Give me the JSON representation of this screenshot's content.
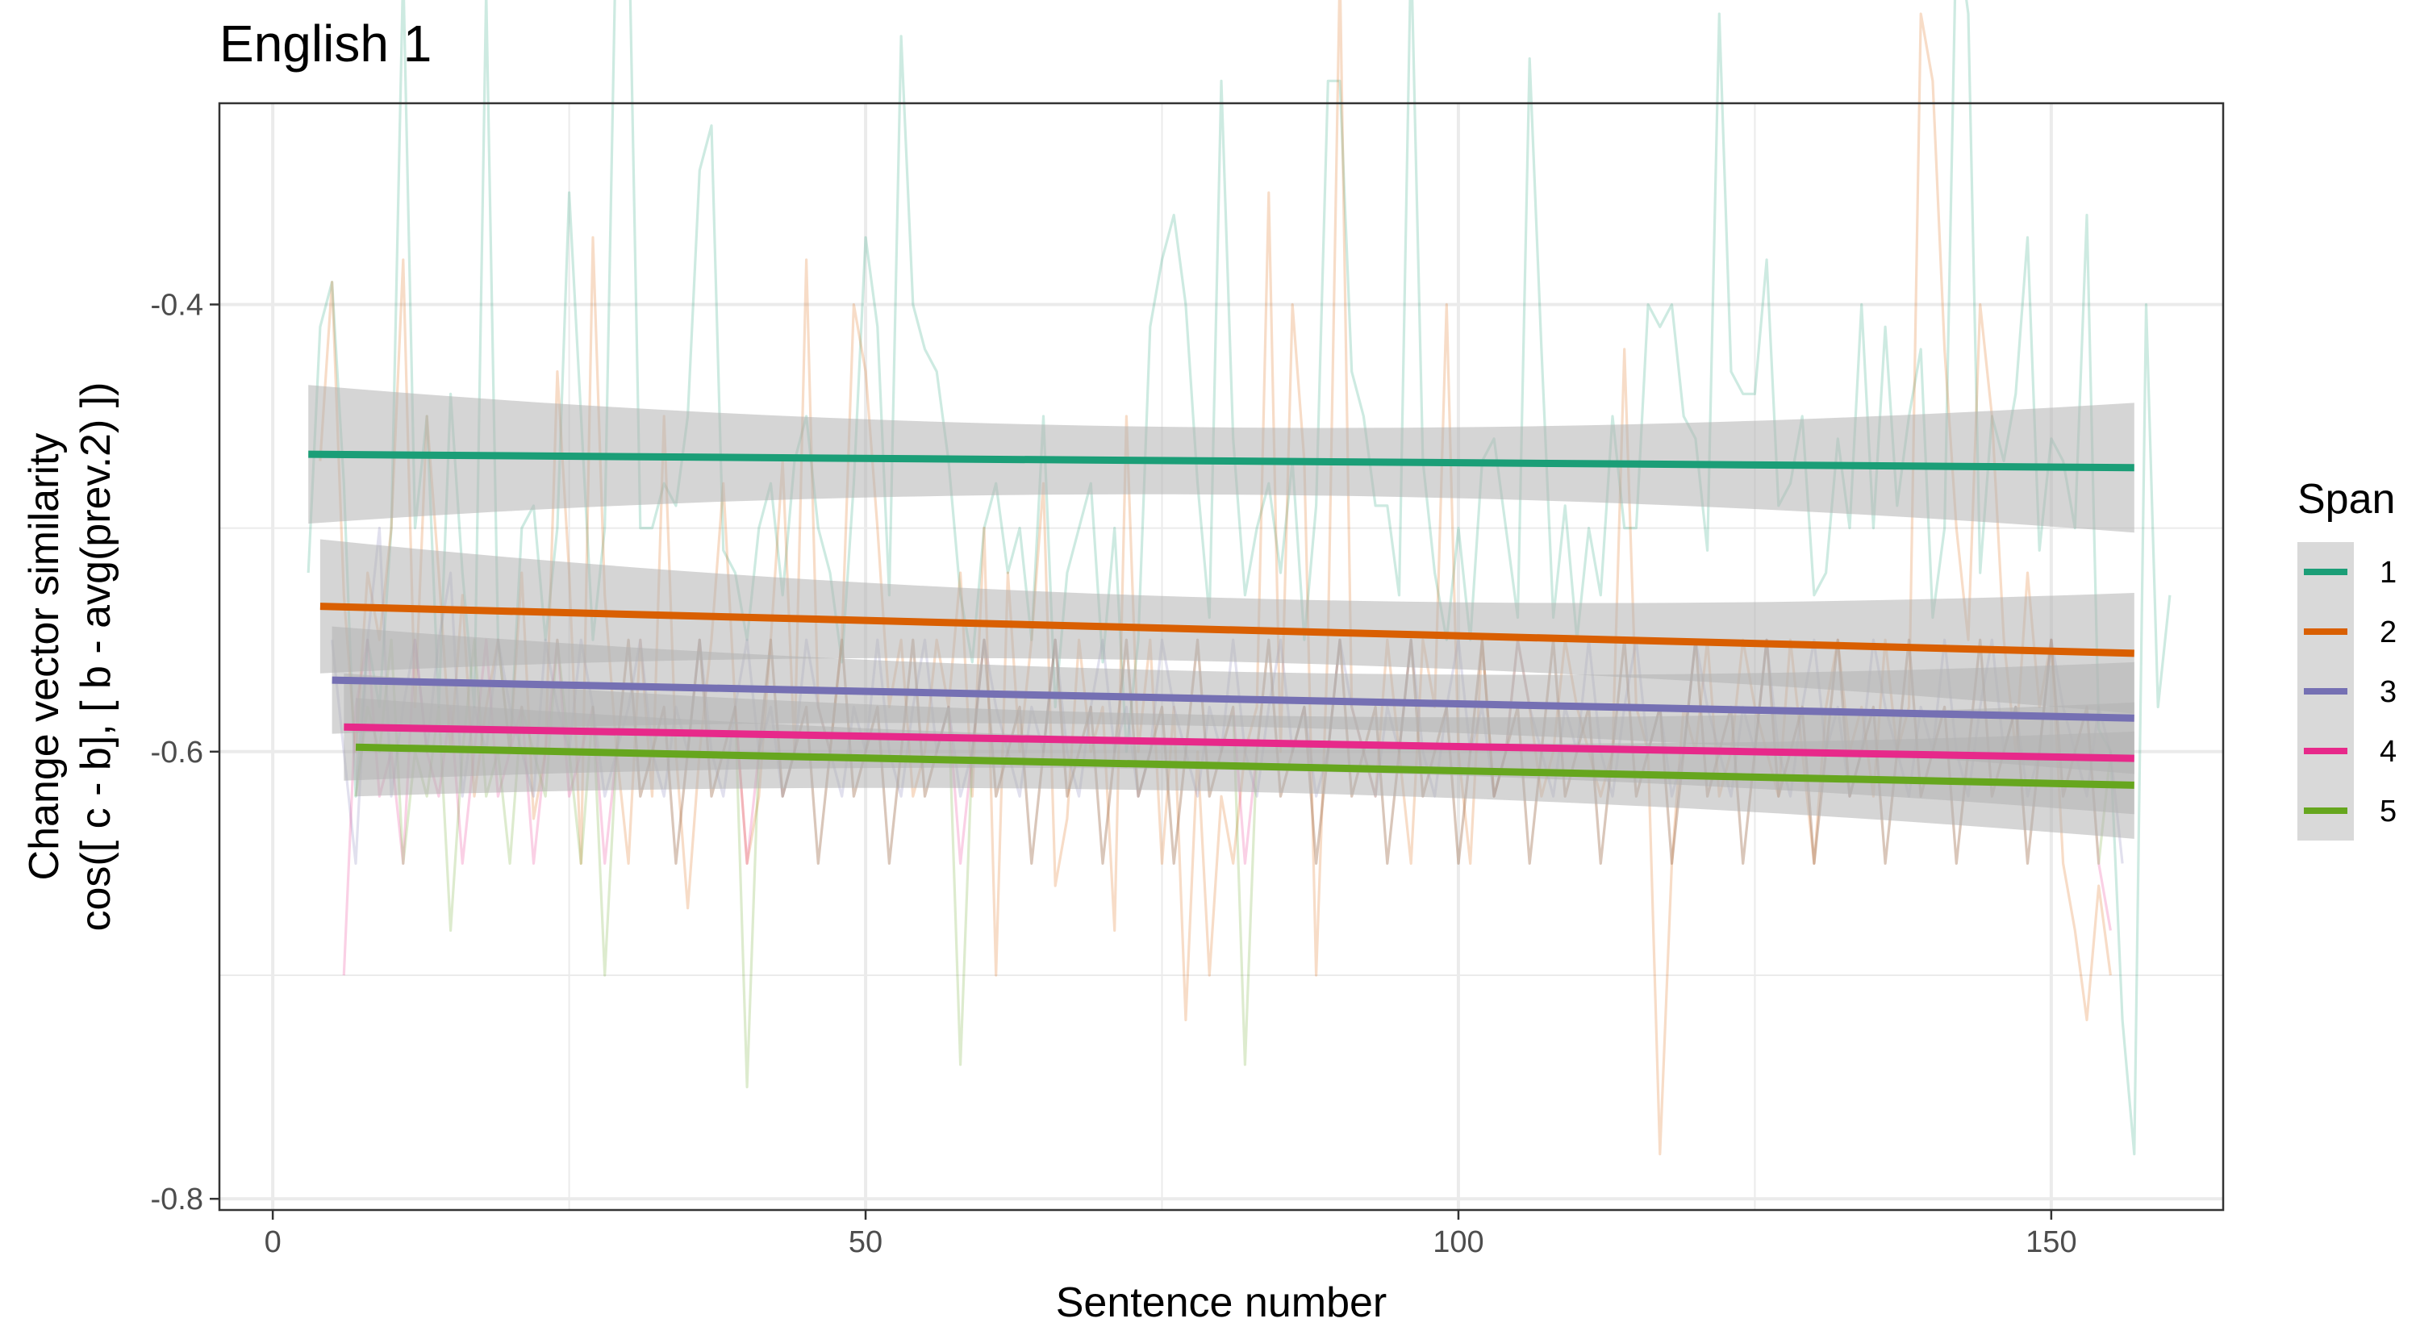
{
  "chart_data": {
    "type": "line",
    "title": "English 1",
    "xlabel": "Sentence number",
    "ylabel_lines": [
      "Change vector similarity",
      "cos([ c - b], [ b - avg(prev.2) ])"
    ],
    "xlim": [
      -4.5,
      164.5
    ],
    "ylim": [
      -0.805,
      -0.31
    ],
    "x_ticks": [
      0,
      50,
      100,
      150
    ],
    "x_tick_labels": [
      "0",
      "50",
      "100",
      "150"
    ],
    "y_ticks": [
      -0.8,
      -0.6,
      -0.4
    ],
    "y_tick_labels": [
      "-0.8",
      "-0.6",
      "-0.4"
    ],
    "grid": true,
    "legend": {
      "title": "Span",
      "position": "right",
      "entries": [
        "1",
        "2",
        "3",
        "4",
        "5"
      ]
    },
    "colors": {
      "1": "#1b9e77",
      "2": "#d95f02",
      "3": "#7570b3",
      "4": "#e7298a",
      "5": "#66a61e",
      "ribbon": "#b3b3b3",
      "panel_border": "#333333",
      "grid": "#ebebeb"
    },
    "trend_lines": [
      {
        "name": "1",
        "x": [
          3,
          157
        ],
        "y": [
          -0.467,
          -0.473
        ],
        "se": [
          0.031,
          0.029
        ]
      },
      {
        "name": "2",
        "x": [
          4,
          157
        ],
        "y": [
          -0.535,
          -0.556
        ],
        "se": [
          0.03,
          0.027
        ]
      },
      {
        "name": "3",
        "x": [
          5,
          157
        ],
        "y": [
          -0.568,
          -0.585
        ],
        "se": [
          0.024,
          0.025
        ]
      },
      {
        "name": "4",
        "x": [
          6,
          157
        ],
        "y": [
          -0.589,
          -0.603
        ],
        "se": [
          0.024,
          0.025
        ]
      },
      {
        "name": "5",
        "x": [
          7,
          157
        ],
        "y": [
          -0.598,
          -0.615
        ],
        "se": [
          0.022,
          0.024
        ]
      }
    ],
    "series": [
      {
        "name": "1",
        "x_start": 3,
        "values": [
          -0.52,
          -0.41,
          -0.39,
          -0.48,
          -0.62,
          -0.55,
          -0.58,
          -0.5,
          -0.25,
          -0.5,
          -0.45,
          -0.58,
          -0.44,
          -0.52,
          -0.58,
          -0.26,
          -0.55,
          -0.6,
          -0.5,
          -0.49,
          -0.55,
          -0.5,
          -0.35,
          -0.45,
          -0.55,
          -0.5,
          -0.22,
          -0.22,
          -0.5,
          -0.5,
          -0.48,
          -0.49,
          -0.45,
          -0.34,
          -0.32,
          -0.51,
          -0.52,
          -0.55,
          -0.5,
          -0.48,
          -0.53,
          -0.47,
          -0.45,
          -0.5,
          -0.52,
          -0.56,
          -0.48,
          -0.37,
          -0.41,
          -0.53,
          -0.28,
          -0.4,
          -0.42,
          -0.43,
          -0.47,
          -0.53,
          -0.56,
          -0.5,
          -0.48,
          -0.52,
          -0.5,
          -0.55,
          -0.45,
          -0.58,
          -0.52,
          -0.5,
          -0.48,
          -0.56,
          -0.5,
          -0.6,
          -0.55,
          -0.41,
          -0.38,
          -0.36,
          -0.4,
          -0.48,
          -0.54,
          -0.3,
          -0.46,
          -0.53,
          -0.5,
          -0.48,
          -0.52,
          -0.47,
          -0.55,
          -0.49,
          -0.3,
          -0.3,
          -0.43,
          -0.45,
          -0.49,
          -0.49,
          -0.53,
          -0.24,
          -0.47,
          -0.52,
          -0.55,
          -0.5,
          -0.55,
          -0.47,
          -0.46,
          -0.5,
          -0.54,
          -0.29,
          -0.42,
          -0.54,
          -0.49,
          -0.55,
          -0.5,
          -0.53,
          -0.45,
          -0.5,
          -0.5,
          -0.4,
          -0.41,
          -0.4,
          -0.45,
          -0.46,
          -0.51,
          -0.27,
          -0.43,
          -0.44,
          -0.44,
          -0.38,
          -0.49,
          -0.48,
          -0.45,
          -0.53,
          -0.52,
          -0.46,
          -0.5,
          -0.4,
          -0.5,
          -0.41,
          -0.49,
          -0.45,
          -0.42,
          -0.54,
          -0.5,
          -0.23,
          -0.27,
          -0.52,
          -0.45,
          -0.47,
          -0.44,
          -0.37,
          -0.51,
          -0.46,
          -0.47,
          -0.5,
          -0.36,
          -0.59,
          -0.6,
          -0.72,
          -0.78,
          -0.4,
          -0.58,
          -0.53
        ]
      },
      {
        "name": "2",
        "x_start": 4,
        "values": [
          -0.47,
          -0.39,
          -0.53,
          -0.6,
          -0.52,
          -0.55,
          -0.5,
          -0.38,
          -0.58,
          -0.45,
          -0.52,
          -0.6,
          -0.53,
          -0.62,
          -0.58,
          -0.55,
          -0.6,
          -0.52,
          -0.63,
          -0.6,
          -0.43,
          -0.52,
          -0.65,
          -0.37,
          -0.53,
          -0.6,
          -0.65,
          -0.55,
          -0.62,
          -0.45,
          -0.6,
          -0.67,
          -0.6,
          -0.55,
          -0.48,
          -0.58,
          -0.65,
          -0.62,
          -0.55,
          -0.47,
          -0.6,
          -0.38,
          -0.58,
          -0.6,
          -0.55,
          -0.4,
          -0.43,
          -0.5,
          -0.58,
          -0.55,
          -0.62,
          -0.6,
          -0.55,
          -0.58,
          -0.52,
          -0.62,
          -0.5,
          -0.7,
          -0.52,
          -0.6,
          -0.55,
          -0.48,
          -0.66,
          -0.63,
          -0.55,
          -0.6,
          -0.58,
          -0.68,
          -0.45,
          -0.6,
          -0.55,
          -0.65,
          -0.58,
          -0.72,
          -0.6,
          -0.7,
          -0.62,
          -0.65,
          -0.6,
          -0.58,
          -0.35,
          -0.6,
          -0.4,
          -0.47,
          -0.7,
          -0.55,
          -0.25,
          -0.58,
          -0.6,
          -0.62,
          -0.55,
          -0.6,
          -0.65,
          -0.55,
          -0.58,
          -0.4,
          -0.6,
          -0.65,
          -0.55,
          -0.62,
          -0.6,
          -0.55,
          -0.58,
          -0.62,
          -0.6,
          -0.55,
          -0.58,
          -0.6,
          -0.62,
          -0.6,
          -0.42,
          -0.58,
          -0.6,
          -0.78,
          -0.65,
          -0.58,
          -0.6,
          -0.55,
          -0.62,
          -0.6,
          -0.55,
          -0.58,
          -0.6,
          -0.62,
          -0.55,
          -0.6,
          -0.65,
          -0.58,
          -0.55,
          -0.6,
          -0.58,
          -0.62,
          -0.55,
          -0.6,
          -0.58,
          -0.27,
          -0.3,
          -0.42,
          -0.5,
          -0.55,
          -0.4,
          -0.45,
          -0.55,
          -0.6,
          -0.52,
          -0.58,
          -0.55,
          -0.65,
          -0.68,
          -0.72,
          -0.66,
          -0.7
        ]
      },
      {
        "name": "3",
        "x_start": 5,
        "values": [
          -0.55,
          -0.6,
          -0.65,
          -0.55,
          -0.5,
          -0.62,
          -0.58,
          -0.55,
          -0.6,
          -0.55,
          -0.52,
          -0.62,
          -0.58,
          -0.6,
          -0.55,
          -0.58,
          -0.6,
          -0.62,
          -0.55,
          -0.58,
          -0.6,
          -0.55,
          -0.58,
          -0.62,
          -0.6,
          -0.58,
          -0.55,
          -0.6,
          -0.62,
          -0.58,
          -0.6,
          -0.55,
          -0.6,
          -0.62,
          -0.58,
          -0.55,
          -0.6,
          -0.58,
          -0.62,
          -0.6,
          -0.55,
          -0.58,
          -0.6,
          -0.62,
          -0.58,
          -0.6,
          -0.55,
          -0.6,
          -0.62,
          -0.58,
          -0.55,
          -0.6,
          -0.58,
          -0.62,
          -0.6,
          -0.55,
          -0.58,
          -0.6,
          -0.62,
          -0.58,
          -0.6,
          -0.55,
          -0.6,
          -0.62,
          -0.58,
          -0.55,
          -0.6,
          -0.58,
          -0.62,
          -0.6,
          -0.55,
          -0.58,
          -0.6,
          -0.62,
          -0.58,
          -0.6,
          -0.55,
          -0.6,
          -0.62,
          -0.58,
          -0.55,
          -0.6,
          -0.58,
          -0.62,
          -0.6,
          -0.55,
          -0.58,
          -0.6,
          -0.62,
          -0.58,
          -0.6,
          -0.55,
          -0.6,
          -0.62,
          -0.58,
          -0.55,
          -0.6,
          -0.58,
          -0.62,
          -0.6,
          -0.55,
          -0.58,
          -0.6,
          -0.62,
          -0.58,
          -0.6,
          -0.55,
          -0.6,
          -0.62,
          -0.58,
          -0.55,
          -0.6,
          -0.58,
          -0.62,
          -0.6,
          -0.55,
          -0.58,
          -0.6,
          -0.62,
          -0.58,
          -0.6,
          -0.55,
          -0.6,
          -0.62,
          -0.58,
          -0.55,
          -0.6,
          -0.58,
          -0.62,
          -0.6,
          -0.55,
          -0.58,
          -0.6,
          -0.62,
          -0.58,
          -0.6,
          -0.55,
          -0.6,
          -0.62,
          -0.58,
          -0.55,
          -0.6,
          -0.58,
          -0.62,
          -0.6,
          -0.55,
          -0.58,
          -0.6,
          -0.62,
          -0.58,
          -0.6,
          -0.65
        ]
      },
      {
        "name": "4",
        "x_start": 6,
        "values": [
          -0.7,
          -0.58,
          -0.55,
          -0.62,
          -0.6,
          -0.65,
          -0.55,
          -0.6,
          -0.62,
          -0.58,
          -0.65,
          -0.6,
          -0.55,
          -0.62,
          -0.6,
          -0.58,
          -0.65,
          -0.6,
          -0.55,
          -0.62,
          -0.6,
          -0.58,
          -0.65,
          -0.6,
          -0.55,
          -0.62,
          -0.6,
          -0.58,
          -0.65,
          -0.6,
          -0.55,
          -0.62,
          -0.6,
          -0.58,
          -0.65,
          -0.6,
          -0.55,
          -0.62,
          -0.6,
          -0.58,
          -0.65,
          -0.6,
          -0.55,
          -0.62,
          -0.6,
          -0.58,
          -0.65,
          -0.6,
          -0.55,
          -0.62,
          -0.6,
          -0.58,
          -0.65,
          -0.6,
          -0.55,
          -0.62,
          -0.6,
          -0.58,
          -0.65,
          -0.6,
          -0.55,
          -0.62,
          -0.6,
          -0.58,
          -0.65,
          -0.6,
          -0.55,
          -0.62,
          -0.6,
          -0.58,
          -0.65,
          -0.6,
          -0.55,
          -0.62,
          -0.6,
          -0.58,
          -0.65,
          -0.6,
          -0.55,
          -0.62,
          -0.6,
          -0.58,
          -0.65,
          -0.6,
          -0.55,
          -0.62,
          -0.6,
          -0.58,
          -0.65,
          -0.6,
          -0.55,
          -0.62,
          -0.6,
          -0.58,
          -0.65,
          -0.6,
          -0.55,
          -0.62,
          -0.6,
          -0.58,
          -0.65,
          -0.6,
          -0.55,
          -0.62,
          -0.6,
          -0.58,
          -0.65,
          -0.6,
          -0.55,
          -0.62,
          -0.6,
          -0.58,
          -0.65,
          -0.6,
          -0.55,
          -0.62,
          -0.6,
          -0.58,
          -0.65,
          -0.6,
          -0.55,
          -0.62,
          -0.6,
          -0.58,
          -0.65,
          -0.6,
          -0.55,
          -0.62,
          -0.6,
          -0.58,
          -0.65,
          -0.6,
          -0.55,
          -0.62,
          -0.6,
          -0.58,
          -0.65,
          -0.6,
          -0.55,
          -0.62,
          -0.6,
          -0.58,
          -0.65,
          -0.6,
          -0.55,
          -0.62,
          -0.6,
          -0.58,
          -0.65,
          -0.68
        ]
      },
      {
        "name": "5",
        "x_start": 7,
        "values": [
          -0.62,
          -0.58,
          -0.6,
          -0.55,
          -0.65,
          -0.6,
          -0.62,
          -0.58,
          -0.68,
          -0.6,
          -0.55,
          -0.62,
          -0.6,
          -0.65,
          -0.58,
          -0.6,
          -0.62,
          -0.55,
          -0.6,
          -0.65,
          -0.58,
          -0.7,
          -0.6,
          -0.55,
          -0.62,
          -0.6,
          -0.58,
          -0.65,
          -0.6,
          -0.55,
          -0.62,
          -0.6,
          -0.58,
          -0.75,
          -0.6,
          -0.55,
          -0.62,
          -0.6,
          -0.58,
          -0.65,
          -0.6,
          -0.55,
          -0.62,
          -0.6,
          -0.58,
          -0.65,
          -0.6,
          -0.55,
          -0.62,
          -0.6,
          -0.58,
          -0.74,
          -0.6,
          -0.55,
          -0.62,
          -0.6,
          -0.58,
          -0.65,
          -0.6,
          -0.55,
          -0.62,
          -0.6,
          -0.58,
          -0.65,
          -0.6,
          -0.55,
          -0.62,
          -0.6,
          -0.58,
          -0.65,
          -0.6,
          -0.55,
          -0.62,
          -0.6,
          -0.58,
          -0.74,
          -0.6,
          -0.55,
          -0.62,
          -0.6,
          -0.58,
          -0.65,
          -0.6,
          -0.55,
          -0.62,
          -0.6,
          -0.58,
          -0.65,
          -0.6,
          -0.55,
          -0.62,
          -0.6,
          -0.58,
          -0.65,
          -0.6,
          -0.55,
          -0.62,
          -0.6,
          -0.58,
          -0.65,
          -0.6,
          -0.55,
          -0.62,
          -0.6,
          -0.58,
          -0.65,
          -0.6,
          -0.55,
          -0.62,
          -0.6,
          -0.58,
          -0.65,
          -0.6,
          -0.55,
          -0.62,
          -0.6,
          -0.58,
          -0.65,
          -0.6,
          -0.55,
          -0.62,
          -0.6,
          -0.58,
          -0.65,
          -0.6,
          -0.55,
          -0.62,
          -0.6,
          -0.58,
          -0.65,
          -0.6,
          -0.55,
          -0.62,
          -0.6,
          -0.58,
          -0.65,
          -0.6,
          -0.55,
          -0.62,
          -0.6,
          -0.58,
          -0.65,
          -0.6,
          -0.55,
          -0.62,
          -0.6,
          -0.58,
          -0.65,
          -0.6
        ]
      }
    ]
  }
}
